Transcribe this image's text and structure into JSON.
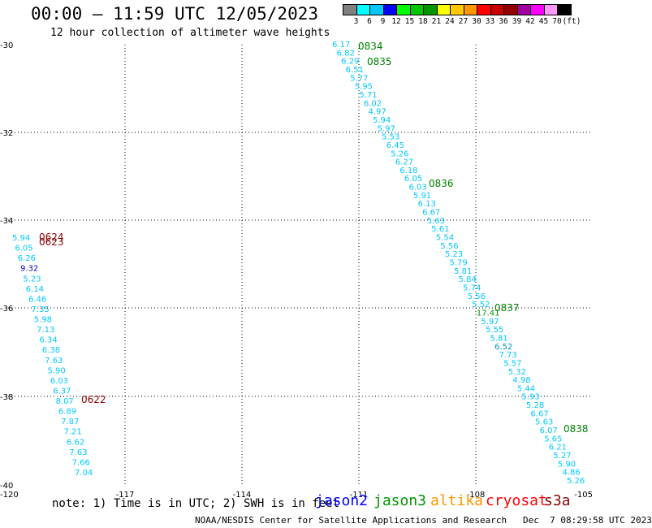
{
  "header": {
    "title": "00:00 – 11:59 UTC 12/05/2023",
    "subtitle": "12 hour collection of altimeter wave heights"
  },
  "legend": {
    "units": "(ft)",
    "bins": [
      {
        "label": "3",
        "color": "#808080"
      },
      {
        "label": "6",
        "color": "#00ffff"
      },
      {
        "label": "9",
        "color": "#00c8ff"
      },
      {
        "label": "12",
        "color": "#0000ff"
      },
      {
        "label": "15",
        "color": "#00ff00"
      },
      {
        "label": "18",
        "color": "#00c800"
      },
      {
        "label": "21",
        "color": "#009600"
      },
      {
        "label": "24",
        "color": "#ffff00"
      },
      {
        "label": "27",
        "color": "#ffc800"
      },
      {
        "label": "30",
        "color": "#ff9600"
      },
      {
        "label": "33",
        "color": "#ff0000"
      },
      {
        "label": "36",
        "color": "#c80000"
      },
      {
        "label": "39",
        "color": "#960000"
      },
      {
        "label": "42",
        "color": "#a000a0"
      },
      {
        "label": "45",
        "color": "#ff00ff"
      },
      {
        "label": "70",
        "color": "#ff96ff"
      },
      {
        "label": "",
        "color": "#000000"
      }
    ]
  },
  "axes": {
    "x_ticks": [
      "-120",
      "-117",
      "-114",
      "-111",
      "-108",
      "-105"
    ],
    "y_ticks": [
      "-30",
      "-32",
      "-34",
      "-36",
      "-38",
      "-40"
    ]
  },
  "tracks": [
    {
      "name": "track-west",
      "points": [
        {
          "text": "5.94",
          "color": "#00c8ff"
        },
        {
          "text": "6.05",
          "color": "#00c8ff"
        },
        {
          "text": "6.26",
          "color": "#00c8ff"
        },
        {
          "text": "9.32",
          "color": "#0000c0"
        },
        {
          "text": "5.23",
          "color": "#00c8ff"
        },
        {
          "text": "6.14",
          "color": "#00c8ff"
        },
        {
          "text": "6.46",
          "color": "#00c8ff"
        },
        {
          "text": "7.35",
          "color": "#00c8ff"
        },
        {
          "text": "5.98",
          "color": "#00c8ff"
        },
        {
          "text": "7.13",
          "color": "#00c8ff"
        },
        {
          "text": "6.34",
          "color": "#00c8ff"
        },
        {
          "text": "6.38",
          "color": "#00c8ff"
        },
        {
          "text": "7.63",
          "color": "#00c8ff"
        },
        {
          "text": "5.90",
          "color": "#00c8ff"
        },
        {
          "text": "6.03",
          "color": "#00c8ff"
        },
        {
          "text": "6.37",
          "color": "#00c8ff"
        },
        {
          "text": "8.07",
          "color": "#00c8ff"
        },
        {
          "text": "6.89",
          "color": "#00c8ff"
        },
        {
          "text": "7.87",
          "color": "#00c8ff"
        },
        {
          "text": "7.21",
          "color": "#00c8ff"
        },
        {
          "text": "6.62",
          "color": "#00c8ff"
        },
        {
          "text": "7.63",
          "color": "#00c8ff"
        },
        {
          "text": "7.66",
          "color": "#00c8ff"
        },
        {
          "text": "7.04",
          "color": "#00c8ff"
        }
      ],
      "times": [
        {
          "text": "0624",
          "color": "#8b0000"
        },
        {
          "text": "0623",
          "color": "#8b0000"
        },
        {
          "text": "0622",
          "color": "#8b0000"
        }
      ]
    },
    {
      "name": "track-east",
      "points": [
        {
          "text": "6.17",
          "color": "#00c8ff"
        },
        {
          "text": "6.82",
          "color": "#00c8ff"
        },
        {
          "text": "6.29",
          "color": "#00c8ff"
        },
        {
          "text": "6.51",
          "color": "#00c8ff"
        },
        {
          "text": "5.77",
          "color": "#00c8ff"
        },
        {
          "text": "5.95",
          "color": "#00c8ff"
        },
        {
          "text": "5.71",
          "color": "#00c8ff"
        },
        {
          "text": "6.02",
          "color": "#00c8ff"
        },
        {
          "text": "4.97",
          "color": "#00c8ff"
        },
        {
          "text": "5.94",
          "color": "#00c8ff"
        },
        {
          "text": "5.97",
          "color": "#00c8ff"
        },
        {
          "text": "5.53",
          "color": "#00c8ff"
        },
        {
          "text": "6.45",
          "color": "#00c8ff"
        },
        {
          "text": "5.26",
          "color": "#00c8ff"
        },
        {
          "text": "6.27",
          "color": "#00c8ff"
        },
        {
          "text": "6.18",
          "color": "#00c8ff"
        },
        {
          "text": "6.05",
          "color": "#00c8ff"
        },
        {
          "text": "6.03",
          "color": "#00c8ff"
        },
        {
          "text": "5.91",
          "color": "#00c8ff"
        },
        {
          "text": "6.13",
          "color": "#00c8ff"
        },
        {
          "text": "6.67",
          "color": "#00c8ff"
        },
        {
          "text": "5.63",
          "color": "#00c8ff"
        },
        {
          "text": "5.61",
          "color": "#00c8ff"
        },
        {
          "text": "5.54",
          "color": "#00c8ff"
        },
        {
          "text": "5.56",
          "color": "#00c8ff"
        },
        {
          "text": "5.23",
          "color": "#00c8ff"
        },
        {
          "text": "5.79",
          "color": "#00c8ff"
        },
        {
          "text": "5.81",
          "color": "#00c8ff"
        },
        {
          "text": "5.84",
          "color": "#00c8ff"
        },
        {
          "text": "5.74",
          "color": "#00c8ff"
        },
        {
          "text": "5.56",
          "color": "#00c8ff"
        },
        {
          "text": "5.52",
          "color": "#00c8ff"
        },
        {
          "text": "17.41",
          "color": "#009600"
        },
        {
          "text": "5.97",
          "color": "#00c8ff"
        },
        {
          "text": "5.55",
          "color": "#00c8ff"
        },
        {
          "text": "5.81",
          "color": "#00c8ff"
        },
        {
          "text": "6.52",
          "color": "#0096c8"
        },
        {
          "text": "7.73",
          "color": "#00c8ff"
        },
        {
          "text": "5.57",
          "color": "#00c8ff"
        },
        {
          "text": "5.32",
          "color": "#00c8ff"
        },
        {
          "text": "4.98",
          "color": "#00c8ff"
        },
        {
          "text": "5.44",
          "color": "#00c8ff"
        },
        {
          "text": "5.93",
          "color": "#00c8ff"
        },
        {
          "text": "5.28",
          "color": "#00c8ff"
        },
        {
          "text": "6.67",
          "color": "#00c8ff"
        },
        {
          "text": "5.63",
          "color": "#00c8ff"
        },
        {
          "text": "6.07",
          "color": "#00c8ff"
        },
        {
          "text": "5.65",
          "color": "#00c8ff"
        },
        {
          "text": "6.21",
          "color": "#00c8ff"
        },
        {
          "text": "5.27",
          "color": "#00c8ff"
        },
        {
          "text": "5.90",
          "color": "#00c8ff"
        },
        {
          "text": "4.86",
          "color": "#00c8ff"
        },
        {
          "text": "5.26",
          "color": "#00c8ff"
        }
      ],
      "times": [
        {
          "text": "0834",
          "color": "#008000"
        },
        {
          "text": "0835",
          "color": "#008000"
        },
        {
          "text": "0836",
          "color": "#008000"
        },
        {
          "text": "0837",
          "color": "#008000"
        },
        {
          "text": "0838",
          "color": "#008000"
        }
      ]
    }
  ],
  "footer": {
    "note": "note: 1) Time is in UTC; 2) SWH is in feet",
    "satellites": [
      {
        "label": "jason2",
        "color": "#0000ff"
      },
      {
        "label": "jason3",
        "color": "#009600"
      },
      {
        "label": "altika",
        "color": "#ff9600"
      },
      {
        "label": "cryosat",
        "color": "#ff0000"
      },
      {
        "label": "s3a",
        "color": "#8b0000"
      }
    ],
    "credit": "NOAA/NESDIS Center for Satellite Applications and Research   Dec  7 08:29:58 UTC 2023"
  }
}
